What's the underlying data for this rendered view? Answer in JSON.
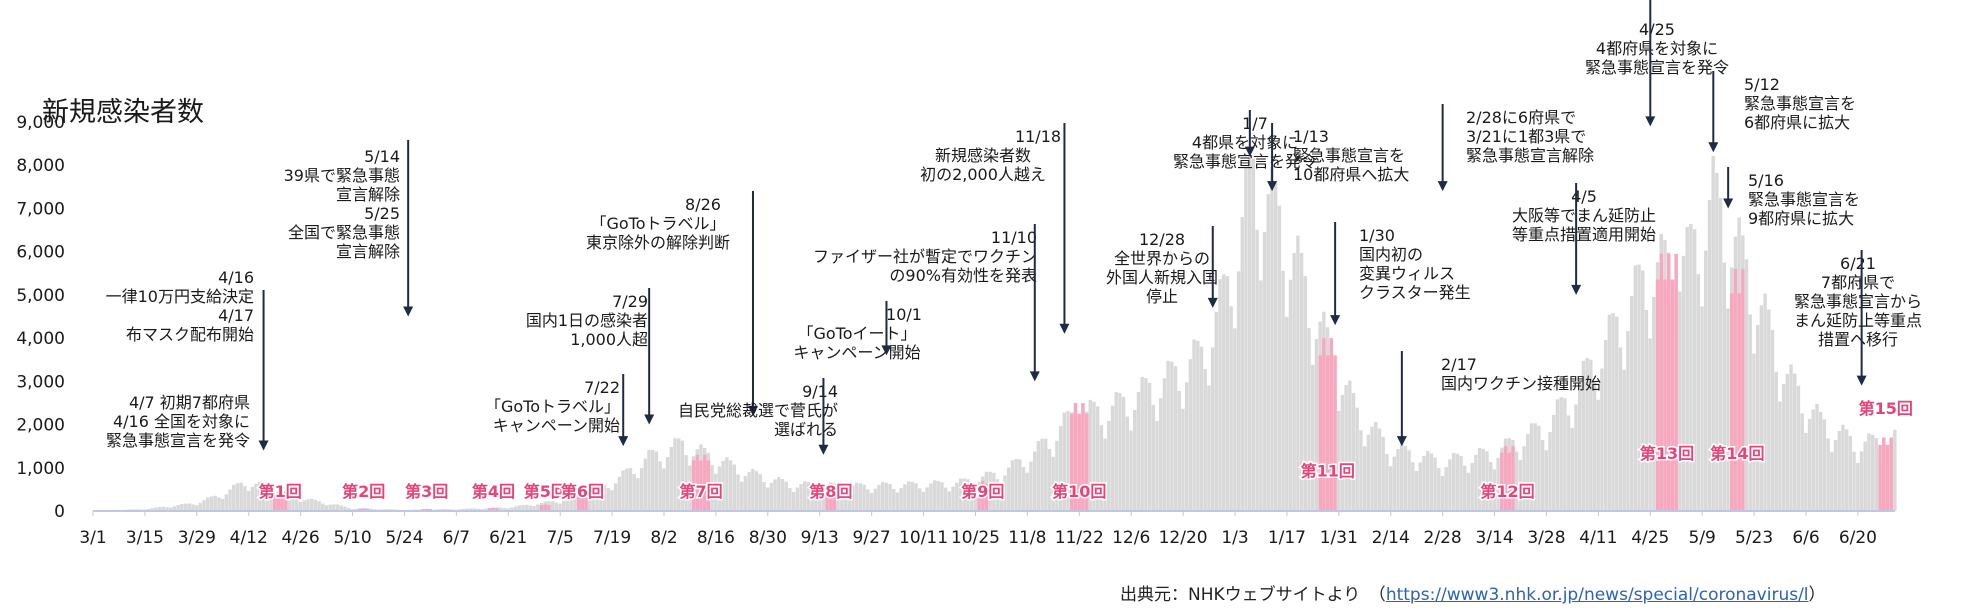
{
  "chart_data": {
    "type": "bar",
    "title": "新規感染者数",
    "ylim": [
      0,
      9000
    ],
    "yticks": [
      0,
      1000,
      2000,
      3000,
      4000,
      5000,
      6000,
      7000,
      8000,
      9000
    ],
    "ytick_labels": [
      "0",
      "1,000",
      "2,000",
      "3,000",
      "4,000",
      "5,000",
      "6,000",
      "7,000",
      "8,000",
      "9,000"
    ],
    "x_start_date": "2020-03-01",
    "x_end_date": "2021-06-30",
    "xtick_labels": [
      "3/1",
      "3/15",
      "3/29",
      "4/12",
      "4/26",
      "5/10",
      "5/24",
      "6/7",
      "6/21",
      "7/5",
      "7/19",
      "8/2",
      "8/16",
      "8/30",
      "9/13",
      "9/27",
      "10/11",
      "10/25",
      "11/8",
      "11/22",
      "12/6",
      "12/20",
      "1/3",
      "1/17",
      "1/31",
      "2/14",
      "2/28",
      "3/14",
      "3/28",
      "4/11",
      "4/25",
      "5/9",
      "5/23",
      "6/6",
      "6/20"
    ],
    "xtick_dates": [
      "2020-03-01",
      "2020-03-15",
      "2020-03-29",
      "2020-04-12",
      "2020-04-26",
      "2020-05-10",
      "2020-05-24",
      "2020-06-07",
      "2020-06-21",
      "2020-07-05",
      "2020-07-19",
      "2020-08-02",
      "2020-08-16",
      "2020-08-30",
      "2020-09-13",
      "2020-09-27",
      "2020-10-11",
      "2020-10-25",
      "2020-11-08",
      "2020-11-22",
      "2020-12-06",
      "2020-12-20",
      "2021-01-03",
      "2021-01-17",
      "2021-01-31",
      "2021-02-14",
      "2021-02-28",
      "2021-03-14",
      "2021-03-28",
      "2021-04-11",
      "2021-04-25",
      "2021-05-09",
      "2021-05-23",
      "2021-06-06",
      "2021-06-20"
    ],
    "series": [
      {
        "name": "新規感染者数",
        "color": "#d9d9d9",
        "points": [
          [
            "2020-03-01",
            10
          ],
          [
            "2020-03-15",
            40
          ],
          [
            "2020-03-29",
            180
          ],
          [
            "2020-04-05",
            380
          ],
          [
            "2020-04-11",
            650
          ],
          [
            "2020-04-18",
            520
          ],
          [
            "2020-04-25",
            300
          ],
          [
            "2020-05-03",
            180
          ],
          [
            "2020-05-10",
            60
          ],
          [
            "2020-05-24",
            25
          ],
          [
            "2020-06-07",
            40
          ],
          [
            "2020-06-21",
            80
          ],
          [
            "2020-07-05",
            230
          ],
          [
            "2020-07-15",
            450
          ],
          [
            "2020-07-22",
            800
          ],
          [
            "2020-07-29",
            1200
          ],
          [
            "2020-08-07",
            1500
          ],
          [
            "2020-08-15",
            1200
          ],
          [
            "2020-08-25",
            850
          ],
          [
            "2020-09-05",
            600
          ],
          [
            "2020-09-20",
            550
          ],
          [
            "2020-10-05",
            580
          ],
          [
            "2020-10-20",
            620
          ],
          [
            "2020-11-01",
            850
          ],
          [
            "2020-11-10",
            1300
          ],
          [
            "2020-11-20",
            2100
          ],
          [
            "2020-12-01",
            2300
          ],
          [
            "2020-12-15",
            2900
          ],
          [
            "2020-12-25",
            3500
          ],
          [
            "2021-01-01",
            5000
          ],
          [
            "2021-01-08",
            7500
          ],
          [
            "2021-01-15",
            6500
          ],
          [
            "2021-01-22",
            5000
          ],
          [
            "2021-01-29",
            3500
          ],
          [
            "2021-02-05",
            2200
          ],
          [
            "2021-02-14",
            1400
          ],
          [
            "2021-02-28",
            1100
          ],
          [
            "2021-03-14",
            1300
          ],
          [
            "2021-03-28",
            1900
          ],
          [
            "2021-04-05",
            2700
          ],
          [
            "2021-04-15",
            4000
          ],
          [
            "2021-04-25",
            5400
          ],
          [
            "2021-05-05",
            5600
          ],
          [
            "2021-05-12",
            7000
          ],
          [
            "2021-05-18",
            6000
          ],
          [
            "2021-05-25",
            4500
          ],
          [
            "2021-06-01",
            3000
          ],
          [
            "2021-06-10",
            2000
          ],
          [
            "2021-06-20",
            1500
          ],
          [
            "2021-06-30",
            1600
          ]
        ],
        "weekly_amplitude": 0.22
      }
    ],
    "highlights": [
      {
        "label": "第1回",
        "start": "2020-04-19",
        "end": "2020-04-22",
        "value": 450
      },
      {
        "label": "第2回",
        "start": "2020-05-12",
        "end": "2020-05-14",
        "value": 60
      },
      {
        "label": "第3回",
        "start": "2020-05-29",
        "end": "2020-05-31",
        "value": 50
      },
      {
        "label": "第4回",
        "start": "2020-06-16",
        "end": "2020-06-18",
        "value": 70
      },
      {
        "label": "第5回",
        "start": "2020-06-30",
        "end": "2020-07-02",
        "value": 150
      },
      {
        "label": "第6回",
        "start": "2020-07-10",
        "end": "2020-07-12",
        "value": 350
      },
      {
        "label": "第7回",
        "start": "2020-08-10",
        "end": "2020-08-14",
        "value": 1300
      },
      {
        "label": "第8回",
        "start": "2020-09-15",
        "end": "2020-09-17",
        "value": 500
      },
      {
        "label": "第9回",
        "start": "2020-10-26",
        "end": "2020-10-28",
        "value": 700
      },
      {
        "label": "第10回",
        "start": "2020-11-20",
        "end": "2020-11-24",
        "value": 2500
      },
      {
        "label": "第11回",
        "start": "2021-01-26",
        "end": "2021-01-30",
        "value": 4000
      },
      {
        "label": "第12回",
        "start": "2021-03-16",
        "end": "2021-03-19",
        "value": 1500
      },
      {
        "label": "第13回",
        "start": "2021-04-27",
        "end": "2021-05-02",
        "value": 5950
      },
      {
        "label": "第14回",
        "start": "2021-05-17",
        "end": "2021-05-20",
        "value": 5600
      },
      {
        "label": "第15回",
        "start": "2021-06-26",
        "end": "2021-06-29",
        "value": 1700
      }
    ],
    "annotations": [
      {
        "lines": [
          "4/7 初期7都府県",
          "4/16 全国を対象に",
          "緊急事態宣言を発令"
        ],
        "date": "2020-04-16",
        "arrow_to": 1400
      },
      {
        "lines": [
          "4/16",
          "一律10万円支給決定",
          "4/17",
          "布マスク配布開始"
        ],
        "date": "2020-04-16",
        "arrow_to": null
      },
      {
        "lines": [
          "5/14",
          "39県で緊急事態",
          "宣言解除",
          "5/25",
          "全国で緊急事態",
          "宣言解除"
        ],
        "date": "2020-05-25",
        "arrow_to": 4500
      },
      {
        "lines": [
          "7/22",
          "「GoToトラベル」",
          "キャンペーン開始"
        ],
        "date": "2020-07-22",
        "arrow_to": 1500
      },
      {
        "lines": [
          "7/29",
          "国内1日の感染者",
          "1,000人超"
        ],
        "date": "2020-07-29",
        "arrow_to": 2000
      },
      {
        "lines": [
          "8/26",
          "「GoToトラベル」",
          "東京除外の解除判断"
        ],
        "date": "2020-08-26",
        "arrow_to": 2200
      },
      {
        "lines": [
          "9/14",
          "自民党総裁選で菅氏が",
          "選ばれる"
        ],
        "date": "2020-09-14",
        "arrow_to": 1300
      },
      {
        "lines": [
          "10/1",
          "「GoToイート」",
          "キャンペーン開始"
        ],
        "date": "2020-10-01",
        "arrow_to": 3600
      },
      {
        "lines": [
          "11/10",
          "ファイザー社が暫定でワクチン",
          "の90%有効性を発表"
        ],
        "date": "2020-11-10",
        "arrow_to": 3000
      },
      {
        "lines": [
          "11/18",
          "新規感染者数",
          "初の2,000人越え"
        ],
        "date": "2020-11-18",
        "arrow_to": 4100
      },
      {
        "lines": [
          "12/28",
          "全世界からの",
          "外国人新規入国",
          "停止"
        ],
        "date": "2020-12-28",
        "arrow_to": 4700
      },
      {
        "lines": [
          "1/7",
          "4都県を対象に",
          "緊急事態宣言を発令"
        ],
        "date": "2021-01-07",
        "arrow_to": 8200
      },
      {
        "lines": [
          "1/13",
          "緊急事態宣言を",
          "10都府県へ拡大"
        ],
        "date": "2021-01-13",
        "arrow_to": 7400
      },
      {
        "lines": [
          "1/30",
          "国内初の",
          "変異ウィルス",
          "クラスター発生"
        ],
        "date": "2021-01-30",
        "arrow_to": 4300
      },
      {
        "lines": [
          "2/17",
          "国内ワクチン接種開始"
        ],
        "date": "2021-02-17",
        "arrow_to": 1500
      },
      {
        "lines": [
          "2/28に6府県で",
          "3/21に1都3県で",
          "緊急事態宣言解除"
        ],
        "date": "2021-02-28",
        "arrow_to": 7400
      },
      {
        "lines": [
          "4/5",
          "大阪等でまん延防止",
          "等重点措置適用開始"
        ],
        "date": "2021-04-05",
        "arrow_to": 5000
      },
      {
        "lines": [
          "4/25",
          "4都府県を対象に",
          "緊急事態宣言を発令"
        ],
        "date": "2021-04-25",
        "arrow_to": 8900
      },
      {
        "lines": [
          "5/12",
          "緊急事態宣言を",
          "6都府県に拡大"
        ],
        "date": "2021-05-12",
        "arrow_to": 8300
      },
      {
        "lines": [
          "5/16",
          "緊急事態宣言を",
          "9都府県に拡大"
        ],
        "date": "2021-05-16",
        "arrow_to": 7000
      },
      {
        "lines": [
          "6/21",
          "7都府県で",
          "緊急事態宣言から",
          "まん延防止等重点",
          "措置へ移行"
        ],
        "date": "2021-06-21",
        "arrow_to": 2900
      }
    ]
  },
  "source": {
    "prefix": "出典元：NHKウェブサイトより　（",
    "url": "https://www3.nhk.or.jp/news/special/coronavirus/l",
    "suffix": "）"
  },
  "colors": {
    "bar": "#d9d9d9",
    "highlight_bar": "#f7a8bf",
    "highlight_text": "#e8447a",
    "arrow": "#1f2a44",
    "axis": "#bfc6e6"
  }
}
